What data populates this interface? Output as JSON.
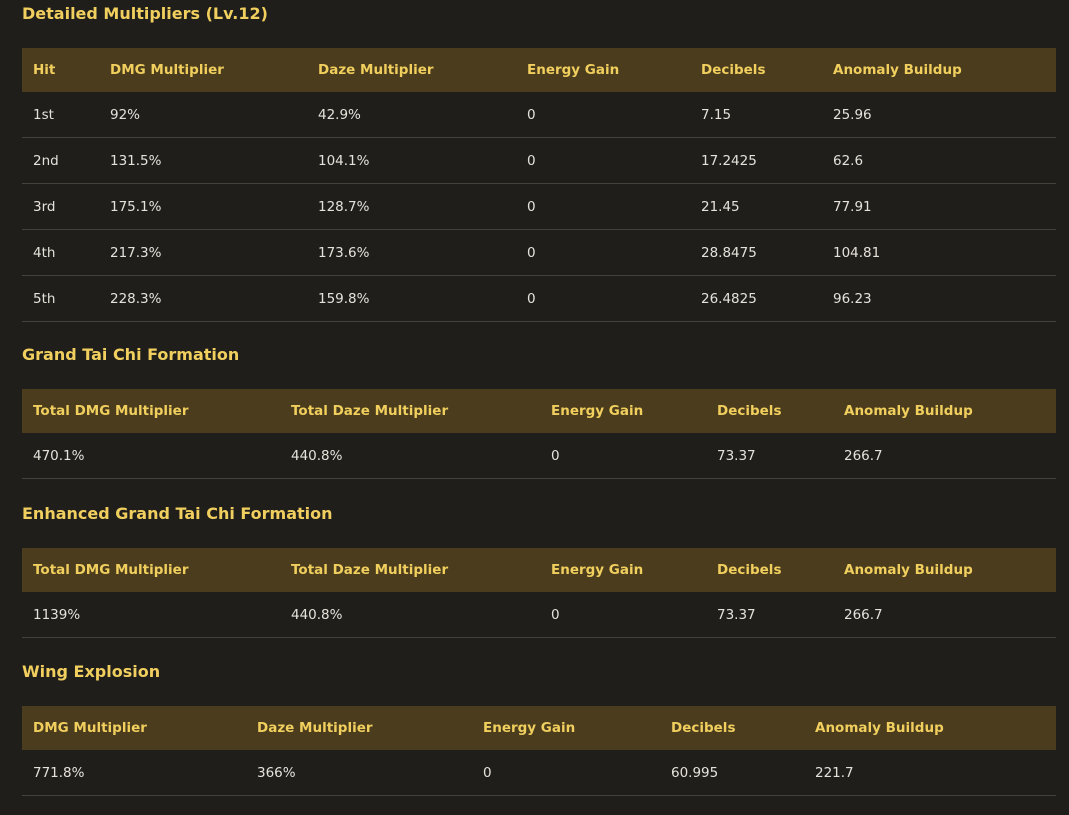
{
  "sections": [
    {
      "title": "Detailed Multipliers (Lv.12)",
      "headers": [
        "Hit",
        "DMG Multiplier",
        "Daze Multiplier",
        "Energy Gain",
        "Decibels",
        "Anomaly Buildup"
      ],
      "rows": [
        [
          "1st",
          "92%",
          "42.9%",
          "0",
          "7.15",
          "25.96"
        ],
        [
          "2nd",
          "131.5%",
          "104.1%",
          "0",
          "17.2425",
          "62.6"
        ],
        [
          "3rd",
          "175.1%",
          "128.7%",
          "0",
          "21.45",
          "77.91"
        ],
        [
          "4th",
          "217.3%",
          "173.6%",
          "0",
          "28.8475",
          "104.81"
        ],
        [
          "5th",
          "228.3%",
          "159.8%",
          "0",
          "26.4825",
          "96.23"
        ]
      ]
    },
    {
      "title": "Grand Tai Chi Formation",
      "headers": [
        "Total DMG Multiplier",
        "Total Daze Multiplier",
        "Energy Gain",
        "Decibels",
        "Anomaly Buildup"
      ],
      "rows": [
        [
          "470.1%",
          "440.8%",
          "0",
          "73.37",
          "266.7"
        ]
      ]
    },
    {
      "title": "Enhanced Grand Tai Chi Formation",
      "headers": [
        "Total DMG Multiplier",
        "Total Daze Multiplier",
        "Energy Gain",
        "Decibels",
        "Anomaly Buildup"
      ],
      "rows": [
        [
          "1139%",
          "440.8%",
          "0",
          "73.37",
          "266.7"
        ]
      ]
    },
    {
      "title": "Wing Explosion",
      "headers": [
        "DMG Multiplier",
        "Daze Multiplier",
        "Energy Gain",
        "Decibels",
        "Anomaly Buildup"
      ],
      "rows": [
        [
          "771.8%",
          "366%",
          "0",
          "60.995",
          "221.7"
        ]
      ]
    }
  ],
  "colors": {
    "background": "#1f1e1b",
    "header_bg": "#4a3c1c",
    "accent": "#f1cf5e",
    "text": "#e6e2da",
    "divider": "#45423c"
  }
}
